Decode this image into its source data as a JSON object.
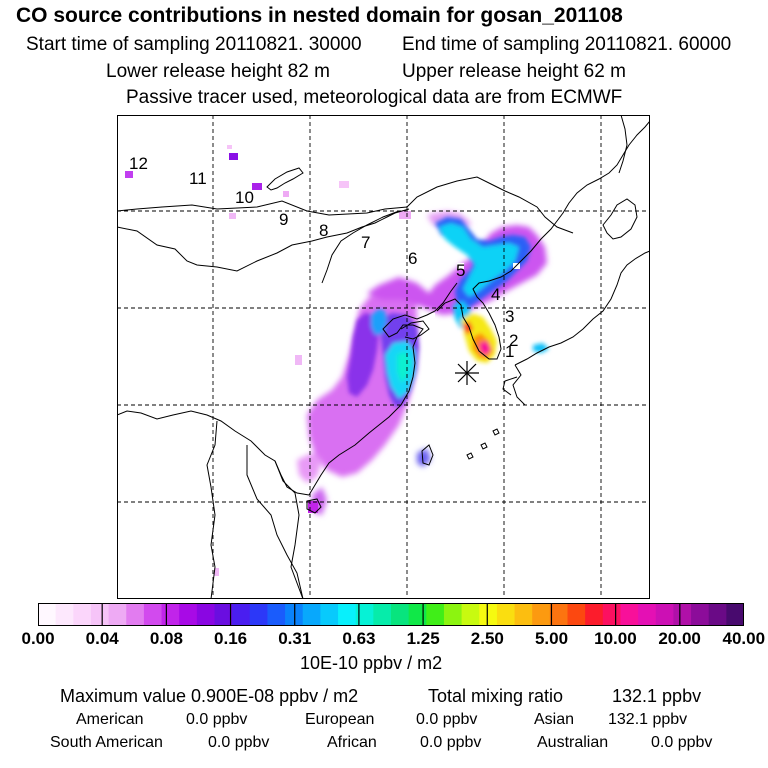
{
  "header": {
    "title": "CO  source contributions in nested domain for gosan_201108",
    "start_time": "Start time of sampling 20110821. 30000",
    "end_time": "End time of sampling 20110821. 60000",
    "lower_height": "Lower release height   82 m",
    "upper_height": "Upper release height   62 m",
    "tracer_note": "Passive tracer used, meteorological data are from ECMWF"
  },
  "map": {
    "trajectory_labels": [
      "12",
      "11",
      "10",
      "9",
      "8",
      "7",
      "6",
      "5",
      "4",
      "3",
      "2",
      "1"
    ],
    "receptor_marker": "star-receptor"
  },
  "colorbar": {
    "labels": [
      "0.00",
      "0.04",
      "0.08",
      "0.16",
      "0.31",
      "0.63",
      "1.25",
      "2.50",
      "5.00",
      "10.00",
      "20.00",
      "40.00"
    ],
    "colors": [
      "#fff8ff",
      "#fde8fd",
      "#fbd6fb",
      "#f6c4f8",
      "#eeaaf4",
      "#e27cf0",
      "#d24aee",
      "#c124ea",
      "#a80ae6",
      "#8a06e2",
      "#6a0ee0",
      "#4a1ef0",
      "#2c38f8",
      "#1a5cfc",
      "#0a82fc",
      "#08a8fc",
      "#08cafc",
      "#08f0fc",
      "#06f2d6",
      "#06ecaa",
      "#08e47e",
      "#10e848",
      "#40ee18",
      "#8cf410",
      "#c8fa10",
      "#f6fa10",
      "#fade10",
      "#fcbe10",
      "#fc9a10",
      "#fc7410",
      "#fc4810",
      "#fc1c2c",
      "#fc1060",
      "#f8109a",
      "#e410b4",
      "#cc10b4",
      "#b010a8",
      "#8c0c9a",
      "#6a0a86",
      "#480a6e"
    ],
    "unit": "10E-10 ppbv / m2"
  },
  "stats": {
    "max_value": "Maximum value  0.900E-08 ppbv / m2",
    "total_mixing": "Total mixing ratio",
    "total_mixing_value": "132.1 ppbv"
  },
  "sources": [
    {
      "name": "American",
      "value": "0.0 ppbv"
    },
    {
      "name": "European",
      "value": "0.0 ppbv"
    },
    {
      "name": "Asian",
      "value": "132.1 ppbv"
    },
    {
      "name": "South American",
      "value": "0.0 ppbv"
    },
    {
      "name": "African",
      "value": "0.0 ppbv"
    },
    {
      "name": "Australian",
      "value": "0.0 ppbv"
    }
  ]
}
